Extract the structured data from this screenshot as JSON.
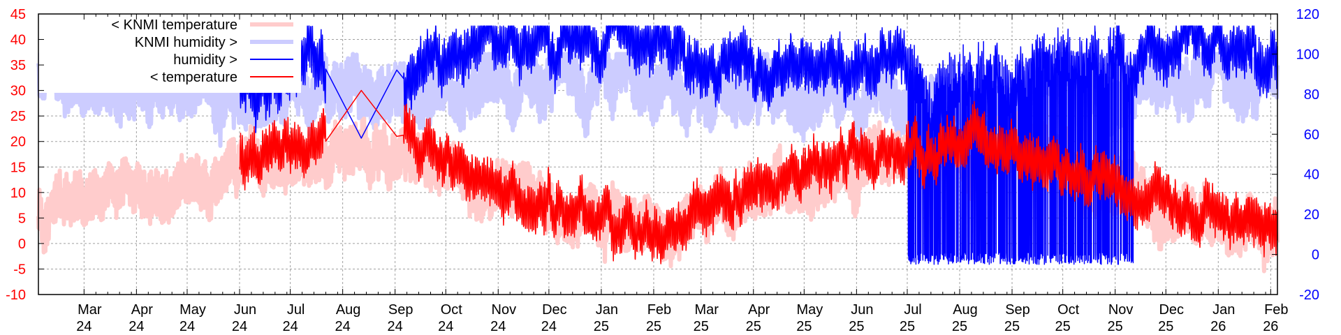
{
  "chart_data": {
    "type": "line",
    "title": "",
    "x_start": "2024-02-03",
    "x_end": "2026-02-05",
    "x_ticks": [
      {
        "date": "2024-03-01",
        "month": "Mar",
        "year": "24"
      },
      {
        "date": "2024-04-01",
        "month": "Apr",
        "year": "24"
      },
      {
        "date": "2024-05-01",
        "month": "May",
        "year": "24"
      },
      {
        "date": "2024-06-01",
        "month": "Jun",
        "year": "24"
      },
      {
        "date": "2024-07-01",
        "month": "Jul",
        "year": "24"
      },
      {
        "date": "2024-08-01",
        "month": "Aug",
        "year": "24"
      },
      {
        "date": "2024-09-01",
        "month": "Sep",
        "year": "24"
      },
      {
        "date": "2024-10-01",
        "month": "Oct",
        "year": "24"
      },
      {
        "date": "2024-11-01",
        "month": "Nov",
        "year": "24"
      },
      {
        "date": "2024-12-01",
        "month": "Dec",
        "year": "24"
      },
      {
        "date": "2025-01-01",
        "month": "Jan",
        "year": "25"
      },
      {
        "date": "2025-02-01",
        "month": "Feb",
        "year": "25"
      },
      {
        "date": "2025-03-01",
        "month": "Mar",
        "year": "25"
      },
      {
        "date": "2025-04-01",
        "month": "Apr",
        "year": "25"
      },
      {
        "date": "2025-05-01",
        "month": "May",
        "year": "25"
      },
      {
        "date": "2025-06-01",
        "month": "Jun",
        "year": "25"
      },
      {
        "date": "2025-07-01",
        "month": "Jul",
        "year": "25"
      },
      {
        "date": "2025-08-01",
        "month": "Aug",
        "year": "25"
      },
      {
        "date": "2025-09-01",
        "month": "Sep",
        "year": "25"
      },
      {
        "date": "2025-10-01",
        "month": "Oct",
        "year": "25"
      },
      {
        "date": "2025-11-01",
        "month": "Nov",
        "year": "25"
      },
      {
        "date": "2025-12-01",
        "month": "Dec",
        "year": "25"
      },
      {
        "date": "2026-01-01",
        "month": "Jan",
        "year": "26"
      },
      {
        "date": "2026-02-01",
        "month": "Feb",
        "year": "26"
      }
    ],
    "y_left": {
      "label": "temperature",
      "ylim": [
        -10,
        45
      ],
      "ticks": [
        "-10",
        "-5",
        "0",
        "5",
        "10",
        "15",
        "20",
        "25",
        "30",
        "35",
        "40",
        "45"
      ],
      "color": "#ff0000"
    },
    "y_right": {
      "label": "humidity",
      "ylim": [
        -20,
        120
      ],
      "ticks": [
        "-20",
        "0",
        "20",
        "40",
        "60",
        "80",
        "100",
        "120"
      ],
      "color": "#0000ff"
    },
    "grid": true,
    "legend_position": "top-left",
    "monthly_months": [
      "2024-02",
      "2024-03",
      "2024-04",
      "2024-05",
      "2024-06",
      "2024-07",
      "2024-08",
      "2024-09",
      "2024-10",
      "2024-11",
      "2024-12",
      "2025-01",
      "2025-02",
      "2025-03",
      "2025-04",
      "2025-05",
      "2025-06",
      "2025-07",
      "2025-08",
      "2025-09",
      "2025-10",
      "2025-11",
      "2025-12",
      "2026-01",
      "2026-02"
    ],
    "series": [
      {
        "name": "< KNMI temperature",
        "axis": "left",
        "color": "#ffcccc",
        "width": 6,
        "start": "2024-02-03",
        "end": "2026-02-05",
        "monthly_mean": [
          8,
          9,
          11,
          13,
          15,
          17,
          18,
          16,
          12,
          8,
          5,
          3,
          3,
          7,
          11,
          13,
          17,
          18,
          18,
          16,
          12,
          8,
          5,
          2,
          3
        ]
      },
      {
        "name": "KNMI humidity >",
        "axis": "right",
        "color": "#ccccff",
        "width": 6,
        "start": "2024-02-03",
        "end": "2026-02-05",
        "monthly_mean": [
          86,
          85,
          82,
          80,
          80,
          80,
          80,
          84,
          90,
          90,
          92,
          90,
          84,
          78,
          74,
          74,
          76,
          78,
          80,
          84,
          88,
          90,
          90,
          90,
          88
        ]
      },
      {
        "name": "humidity >",
        "axis": "right",
        "color": "#0000ff",
        "width": 1.5,
        "start": "2024-06-01",
        "end": "2026-02-05",
        "monthly_mean": [
          null,
          null,
          null,
          null,
          80,
          100,
          60,
          95,
          105,
          108,
          108,
          106,
          102,
          95,
          92,
          92,
          95,
          90,
          90,
          92,
          95,
          100,
          104,
          102,
          90
        ]
      },
      {
        "name": "< temperature",
        "axis": "left",
        "color": "#ff0000",
        "width": 1.5,
        "start": "2024-06-01",
        "end": "2026-02-05",
        "monthly_mean": [
          null,
          null,
          null,
          null,
          17,
          19,
          30,
          18,
          13,
          8,
          6,
          4,
          3,
          8,
          13,
          15,
          19,
          20,
          20,
          17,
          13,
          9,
          6,
          2,
          4
        ]
      }
    ]
  }
}
